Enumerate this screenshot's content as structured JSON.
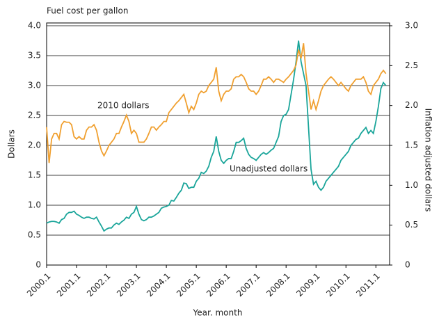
{
  "chart_data": {
    "type": "line",
    "title": "Fuel cost per gallon",
    "x_label": "Year. month",
    "y_label": "Dollars",
    "y2_label": "Inflation adjusted dollars",
    "categories": [
      "2000.1",
      null,
      null,
      null,
      null,
      null,
      null,
      null,
      null,
      null,
      null,
      null,
      "2001.1",
      null,
      null,
      null,
      null,
      null,
      null,
      null,
      null,
      null,
      null,
      null,
      "2002.1",
      null,
      null,
      null,
      null,
      null,
      null,
      null,
      null,
      null,
      null,
      null,
      "2003.1",
      null,
      null,
      null,
      null,
      null,
      null,
      null,
      null,
      null,
      null,
      null,
      "2004.1",
      null,
      null,
      null,
      null,
      null,
      null,
      null,
      null,
      null,
      null,
      null,
      "2005.1",
      null,
      null,
      null,
      null,
      null,
      null,
      null,
      null,
      null,
      null,
      null,
      "2006.1",
      null,
      null,
      null,
      null,
      null,
      null,
      null,
      null,
      null,
      null,
      null,
      "2007.1",
      null,
      null,
      null,
      null,
      null,
      null,
      null,
      null,
      null,
      null,
      null,
      "2008.1",
      null,
      null,
      null,
      null,
      null,
      null,
      null,
      null,
      null,
      null,
      null,
      "2009.1",
      null,
      null,
      null,
      null,
      null,
      null,
      null,
      null,
      null,
      null,
      null,
      "2010.1",
      null,
      null,
      null,
      null,
      null,
      null,
      null,
      null,
      null,
      null,
      null,
      "2011.1",
      null,
      null,
      null,
      null
    ],
    "series": [
      {
        "name": "Unadjusted dollars",
        "color": "#1aa59a",
        "axis": "y",
        "values": [
          0.7,
          0.72,
          0.73,
          0.73,
          0.72,
          0.7,
          0.76,
          0.78,
          0.85,
          0.88,
          0.88,
          0.9,
          0.85,
          0.83,
          0.8,
          0.78,
          0.8,
          0.8,
          0.78,
          0.77,
          0.8,
          0.72,
          0.65,
          0.57,
          0.6,
          0.62,
          0.62,
          0.67,
          0.7,
          0.68,
          0.72,
          0.75,
          0.8,
          0.78,
          0.85,
          0.88,
          0.98,
          0.85,
          0.76,
          0.74,
          0.76,
          0.8,
          0.8,
          0.82,
          0.85,
          0.88,
          0.95,
          0.97,
          0.98,
          1.0,
          1.08,
          1.07,
          1.13,
          1.2,
          1.25,
          1.37,
          1.36,
          1.28,
          1.3,
          1.3,
          1.4,
          1.45,
          1.55,
          1.53,
          1.57,
          1.65,
          1.8,
          1.9,
          2.15,
          1.9,
          1.75,
          1.7,
          1.75,
          1.78,
          1.78,
          1.9,
          2.05,
          2.05,
          2.08,
          2.12,
          1.95,
          1.85,
          1.8,
          1.78,
          1.75,
          1.8,
          1.85,
          1.88,
          1.85,
          1.88,
          1.92,
          1.95,
          2.05,
          2.15,
          2.4,
          2.5,
          2.52,
          2.6,
          2.85,
          3.1,
          3.4,
          3.75,
          3.4,
          3.2,
          3.0,
          2.3,
          1.6,
          1.35,
          1.4,
          1.3,
          1.25,
          1.3,
          1.4,
          1.45,
          1.5,
          1.55,
          1.6,
          1.65,
          1.75,
          1.8,
          1.85,
          1.9,
          2.0,
          2.05,
          2.1,
          2.12,
          2.2,
          2.25,
          2.3,
          2.2,
          2.25,
          2.2,
          2.4,
          2.65,
          2.95,
          3.05,
          3.0
        ]
      },
      {
        "name": "2010 dollars",
        "color": "#f0a030",
        "axis": "y2",
        "values": [
          1.73,
          1.28,
          1.58,
          1.65,
          1.65,
          1.58,
          1.76,
          1.8,
          1.79,
          1.79,
          1.76,
          1.61,
          1.58,
          1.61,
          1.58,
          1.58,
          1.69,
          1.73,
          1.73,
          1.76,
          1.69,
          1.54,
          1.43,
          1.37,
          1.43,
          1.5,
          1.54,
          1.58,
          1.65,
          1.65,
          1.73,
          1.8,
          1.88,
          1.8,
          1.65,
          1.69,
          1.65,
          1.54,
          1.54,
          1.54,
          1.58,
          1.65,
          1.73,
          1.73,
          1.69,
          1.73,
          1.76,
          1.8,
          1.8,
          1.91,
          1.95,
          1.99,
          2.03,
          2.06,
          2.1,
          2.14,
          2.03,
          1.91,
          1.99,
          1.95,
          2.03,
          2.14,
          2.18,
          2.16,
          2.18,
          2.25,
          2.29,
          2.33,
          2.48,
          2.18,
          2.06,
          2.14,
          2.18,
          2.18,
          2.21,
          2.33,
          2.36,
          2.36,
          2.39,
          2.36,
          2.29,
          2.21,
          2.18,
          2.18,
          2.14,
          2.18,
          2.25,
          2.33,
          2.33,
          2.36,
          2.33,
          2.29,
          2.33,
          2.33,
          2.31,
          2.29,
          2.33,
          2.36,
          2.4,
          2.44,
          2.51,
          2.7,
          2.59,
          2.78,
          2.4,
          2.18,
          1.95,
          2.06,
          1.95,
          2.06,
          2.18,
          2.25,
          2.29,
          2.33,
          2.36,
          2.33,
          2.29,
          2.25,
          2.29,
          2.25,
          2.21,
          2.18,
          2.25,
          2.29,
          2.33,
          2.33,
          2.33,
          2.36,
          2.29,
          2.18,
          2.14,
          2.25,
          2.29,
          2.33,
          2.4,
          2.44,
          2.4
        ]
      }
    ],
    "ylim": [
      0,
      4
    ],
    "yticks": [
      0,
      0.5,
      {
        "value": 1,
        "label": "1.0"
      },
      1.5,
      {
        "value": 2,
        "label": "2.0"
      },
      2.5,
      {
        "value": 3,
        "label": "3.0"
      },
      3.5,
      {
        "value": 4,
        "label": "4.0"
      }
    ],
    "y2lim": [
      0,
      3
    ],
    "y2ticks": [
      0,
      0.5,
      {
        "value": 1,
        "label": "1.0"
      },
      1.5,
      {
        "value": 2,
        "label": "2.0"
      },
      2.5,
      {
        "value": 3,
        "label": "3.0"
      }
    ],
    "grid": true
  }
}
